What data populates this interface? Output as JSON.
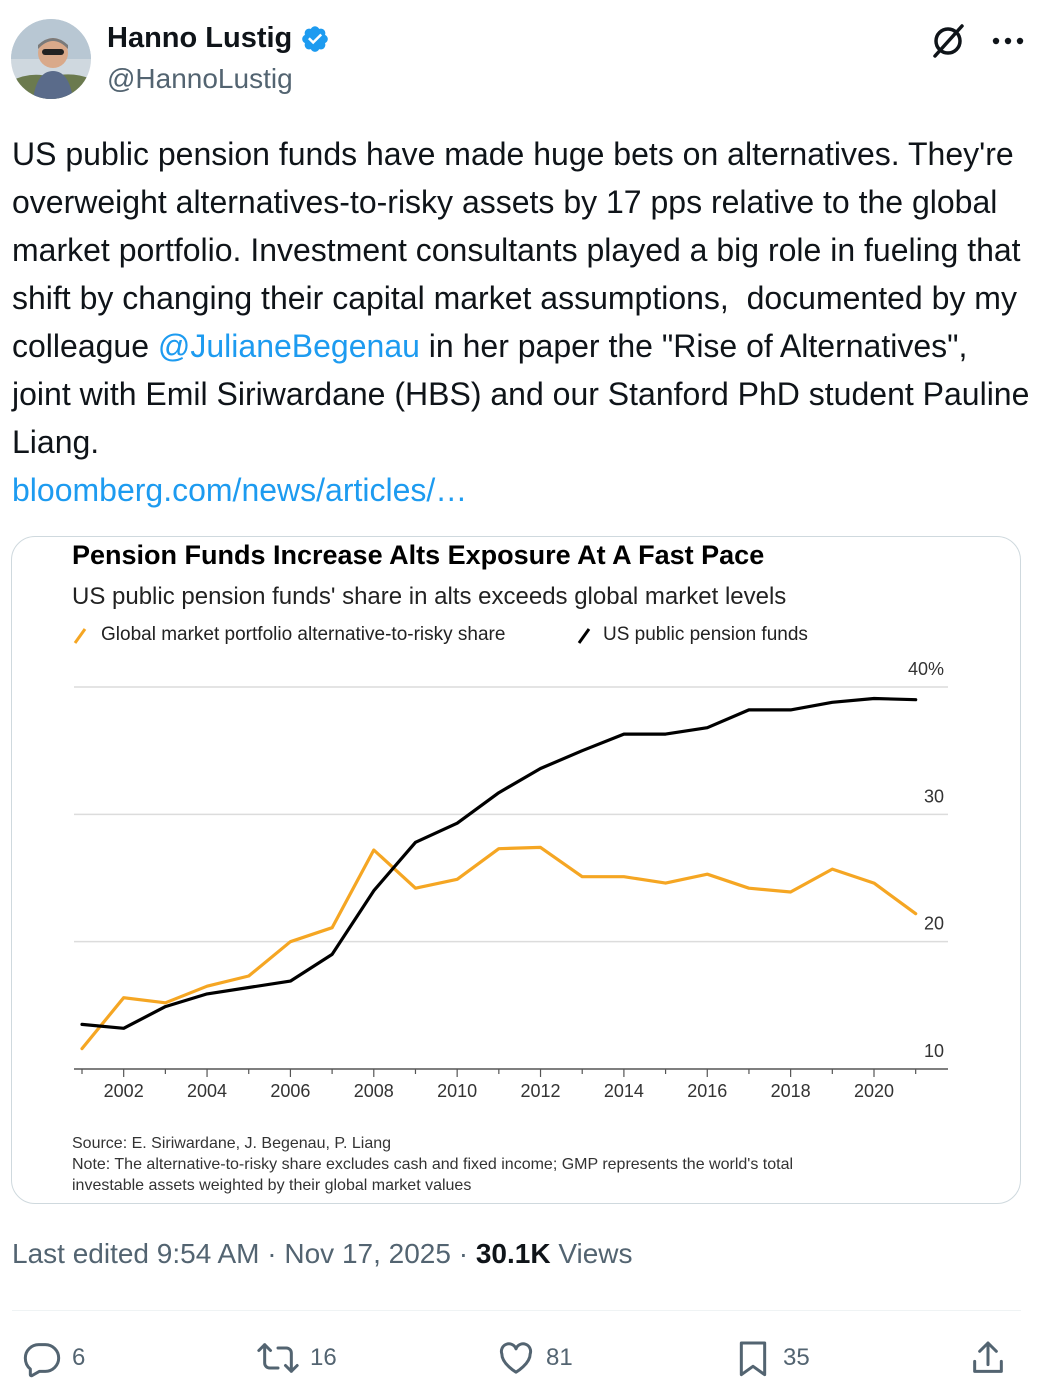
{
  "author": {
    "name": "Hanno Lustig",
    "handle": "@HannoLustig",
    "verified_color": "#1d9bf0"
  },
  "icons": {
    "verified": "verified-badge-icon",
    "grok": "grok-icon",
    "more": "more-icon"
  },
  "tweet": {
    "text_before_mention": "US public pension funds have made huge bets on alternatives. They're overweight alternatives-to-risky assets by 17 pps relative to the global market portfolio. Investment consultants played a big role in fueling that shift by changing their capital market assumptions,  documented by my colleague ",
    "mention": "@JulianeBegenau",
    "text_after_mention": " in her paper the \"Rise of Alternatives\", joint with Emil Siriwardane (HBS) and our Stanford PhD student Pauline Liang.",
    "link": "bloomberg.com/news/articles/…"
  },
  "chart_data": {
    "type": "line",
    "title": "Pension Funds Increase Alts Exposure At A Fast Pace",
    "subtitle": "US public pension funds' share in alts exceeds global market levels",
    "x": [
      2001,
      2002,
      2003,
      2004,
      2005,
      2006,
      2007,
      2008,
      2009,
      2010,
      2011,
      2012,
      2013,
      2014,
      2015,
      2016,
      2017,
      2018,
      2019,
      2020,
      2021
    ],
    "series": [
      {
        "name": "Global market portfolio alternative-to-risky share",
        "color": "#f5a623",
        "values": [
          11.6,
          15.6,
          15.2,
          16.5,
          17.3,
          20.0,
          21.1,
          27.2,
          24.2,
          24.9,
          27.3,
          27.4,
          25.1,
          25.1,
          24.6,
          25.3,
          24.2,
          23.9,
          25.7,
          24.6,
          22.2
        ]
      },
      {
        "name": "US public pension funds",
        "color": "#000000",
        "values": [
          13.5,
          13.2,
          14.9,
          15.9,
          16.4,
          16.9,
          19.0,
          24.0,
          27.8,
          29.3,
          31.7,
          33.6,
          35.0,
          36.3,
          36.3,
          36.8,
          38.2,
          38.2,
          38.8,
          39.1,
          39.0
        ]
      }
    ],
    "x_ticks": [
      "2002",
      "2004",
      "2006",
      "2008",
      "2010",
      "2012",
      "2014",
      "2016",
      "2018",
      "2020"
    ],
    "y_ticks": [
      "10",
      "20",
      "30",
      "40%"
    ],
    "ylim": [
      10,
      40
    ],
    "grid": true,
    "legend_position": "top-left",
    "source": "Source: E. Siriwardane, J. Begenau, P. Liang",
    "note_line1": "Note: The alternative-to-risky share excludes cash and fixed income; GMP represents the world's total",
    "note_line2": "investable assets weighted by their global market values"
  },
  "meta": {
    "edited_label": "Last edited 9:54 AM · Nov 17, 2025 · ",
    "views_count": "30.1K",
    "views_label": " Views"
  },
  "actions": {
    "replies": "6",
    "reposts": "16",
    "likes": "81",
    "bookmarks": "35"
  }
}
